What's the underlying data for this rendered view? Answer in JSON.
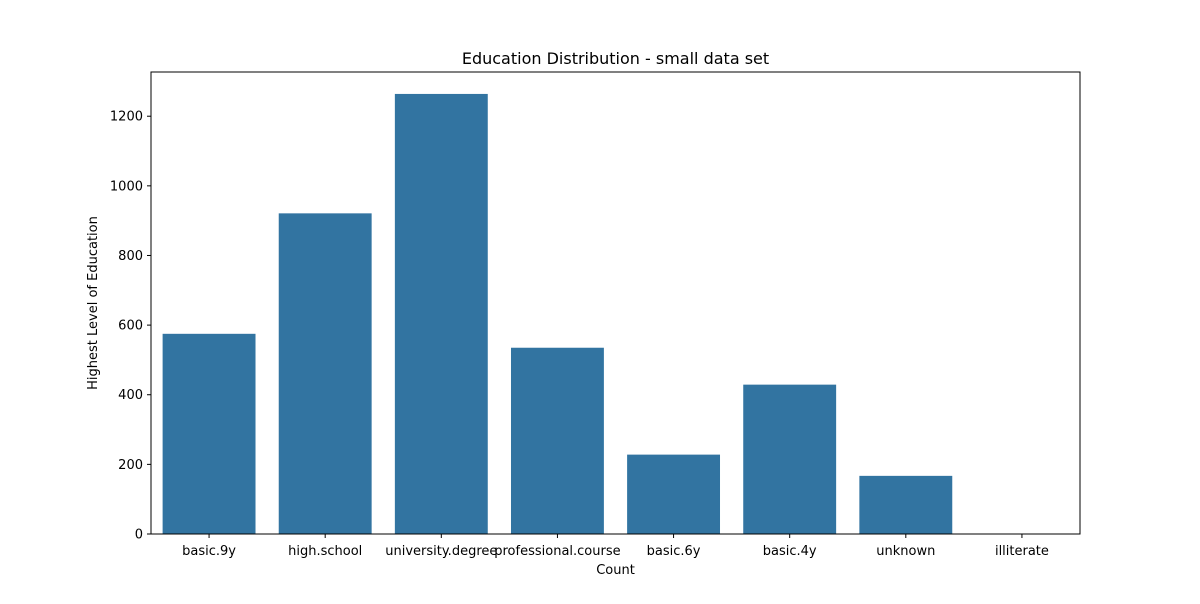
{
  "chart_data": {
    "type": "bar",
    "title": "Education Distribution - small data set",
    "xlabel": "Count",
    "ylabel": "Highest Level of Education",
    "categories": [
      "basic.9y",
      "high.school",
      "university.degree",
      "professional.course",
      "basic.6y",
      "basic.4y",
      "unknown",
      "illiterate"
    ],
    "values": [
      575,
      921,
      1264,
      535,
      228,
      429,
      167,
      1
    ],
    "ylim": [
      0,
      1327
    ],
    "yticks": [
      0,
      200,
      400,
      600,
      800,
      1000,
      1200
    ],
    "grid": false,
    "legend": "none",
    "bar_color": "#3274a1"
  }
}
